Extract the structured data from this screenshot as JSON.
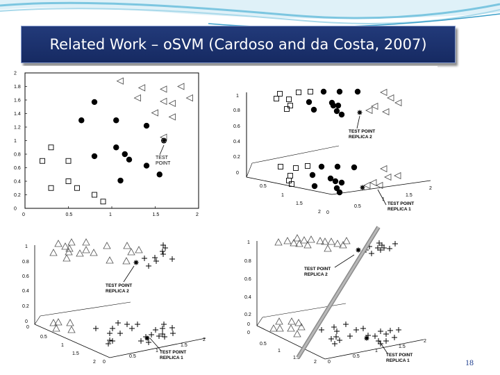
{
  "slide": {
    "title": "Related Work – oSVM (Cardoso and da Costa, 2007)",
    "page_number": "18"
  },
  "colors": {
    "title_bg": "#1c3270",
    "title_text": "#ffffff",
    "accent": "#3a9ec8"
  },
  "panels": {
    "top_left": {
      "yticks": [
        "2",
        "1.8",
        "1.6",
        "1.4",
        "1.2",
        "1",
        "0.8",
        "0.6",
        "0.4",
        "0.2",
        "0"
      ],
      "xticks": [
        "0",
        "0.5",
        "1",
        "1.5",
        "2"
      ],
      "label": [
        "TEST",
        "POINT"
      ],
      "squares": [
        [
          0.3,
          0.9
        ],
        [
          0.2,
          0.7
        ],
        [
          0.5,
          0.7
        ],
        [
          0.3,
          0.3
        ],
        [
          0.5,
          0.4
        ],
        [
          0.6,
          0.3
        ],
        [
          0.8,
          0.2
        ],
        [
          0.9,
          0.1
        ]
      ],
      "circles": [
        [
          0.8,
          1.57
        ],
        [
          0.65,
          1.3
        ],
        [
          1.05,
          1.3
        ],
        [
          1.4,
          1.22
        ],
        [
          1.05,
          0.9
        ],
        [
          0.8,
          0.77
        ],
        [
          1.15,
          0.8
        ],
        [
          1.2,
          0.72
        ],
        [
          1.4,
          0.63
        ],
        [
          1.55,
          0.5
        ],
        [
          1.1,
          0.41
        ]
      ],
      "triangles": [
        [
          1.1,
          1.88
        ],
        [
          1.35,
          1.78
        ],
        [
          1.6,
          1.76
        ],
        [
          1.8,
          1.8
        ],
        [
          1.3,
          1.63
        ],
        [
          1.6,
          1.58
        ],
        [
          1.7,
          1.55
        ],
        [
          1.9,
          1.63
        ],
        [
          1.5,
          1.41
        ],
        [
          1.7,
          1.35
        ],
        [
          1.6,
          1.05
        ]
      ],
      "test_point": [
        1.6,
        1.0
      ]
    },
    "top_right": {
      "yticks": [
        "1",
        "0.8",
        "0.6",
        "0.4",
        "0.2",
        "0"
      ],
      "label_upper": [
        "TEST POINT",
        "REPLICA 2"
      ],
      "label_lower": [
        "TEST POINT",
        "REPLICA 1"
      ],
      "axis_labels_a": [
        "0.5",
        "1",
        "1.5",
        "2"
      ],
      "axis_labels_b": [
        "0",
        "0.5",
        "1",
        "1.5",
        "2"
      ]
    },
    "bottom_left": {
      "yticks": [
        "1",
        "0.8",
        "0.6",
        "0.4",
        "0.2",
        "0"
      ],
      "label_upper": [
        "TEST POINT",
        "REPLICA 2"
      ],
      "label_lower": [
        "TEST POINT",
        "REPLICA 1"
      ],
      "axis_labels_a": [
        "0",
        "0.5",
        "1",
        "1.5",
        "2"
      ],
      "axis_labels_b": [
        "0",
        "0.5",
        "1",
        "1.5",
        "2"
      ]
    },
    "bottom_right": {
      "yticks": [
        "1",
        "0.8",
        "0.6",
        "0.4",
        "0.2",
        "0"
      ],
      "label_upper": [
        "TEST POINT",
        "REPLICA 2"
      ],
      "label_lower": [
        "TEST POINT",
        "REPLICA 1"
      ],
      "axis_labels_a": [
        "0",
        "0.5",
        "1",
        "1.5",
        "2"
      ],
      "axis_labels_b": [
        "0",
        "0.5",
        "1",
        "1.5",
        "2"
      ]
    }
  }
}
